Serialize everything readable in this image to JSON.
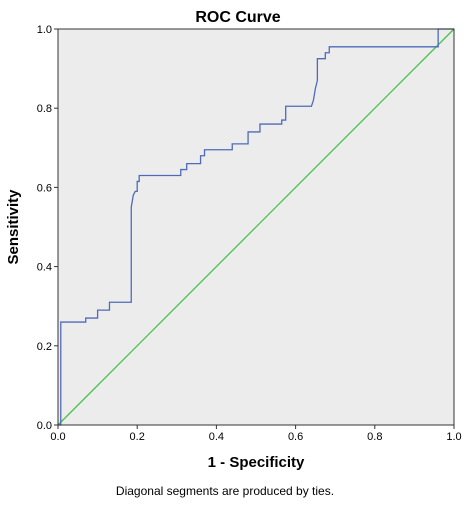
{
  "chart_data": {
    "type": "line",
    "title": "ROC Curve",
    "xlabel": "1 - Specificity",
    "ylabel": "Sensitivity",
    "xlim": [
      0,
      1
    ],
    "ylim": [
      0,
      1
    ],
    "xticks": [
      0.0,
      0.2,
      0.4,
      0.6,
      0.8,
      1.0
    ],
    "yticks": [
      0.0,
      0.2,
      0.4,
      0.6,
      0.8,
      1.0
    ],
    "tick_labels": [
      "0.0",
      "0.2",
      "0.4",
      "0.6",
      "0.8",
      "1.0"
    ],
    "grid": false,
    "footnote": "Diagonal segments are produced by ties.",
    "series": [
      {
        "color": "#4f6bb8",
        "x": [
          0,
          0.007,
          0.007,
          0.07,
          0.07,
          0.1,
          0.1,
          0.13,
          0.13,
          0.185,
          0.185,
          0.19,
          0.195,
          0.2,
          0.2,
          0.205,
          0.205,
          0.31,
          0.31,
          0.325,
          0.325,
          0.36,
          0.36,
          0.37,
          0.37,
          0.44,
          0.44,
          0.48,
          0.48,
          0.51,
          0.51,
          0.565,
          0.565,
          0.575,
          0.575,
          0.64,
          0.645,
          0.65,
          0.655,
          0.655,
          0.675,
          0.675,
          0.685,
          0.685,
          0.96,
          0.96,
          1.0
        ],
        "y": [
          0,
          0,
          0.26,
          0.26,
          0.27,
          0.27,
          0.29,
          0.29,
          0.31,
          0.31,
          0.55,
          0.58,
          0.59,
          0.59,
          0.615,
          0.615,
          0.63,
          0.63,
          0.645,
          0.645,
          0.66,
          0.66,
          0.68,
          0.68,
          0.695,
          0.695,
          0.71,
          0.71,
          0.74,
          0.74,
          0.76,
          0.76,
          0.77,
          0.77,
          0.805,
          0.805,
          0.82,
          0.85,
          0.87,
          0.925,
          0.925,
          0.94,
          0.94,
          0.955,
          0.955,
          1.0,
          1.0
        ]
      },
      {
        "color": "#48c048",
        "x": [
          0,
          1
        ],
        "y": [
          0,
          1
        ]
      }
    ]
  },
  "colors": {
    "plot_background": "#ececec",
    "frame": "#333333"
  }
}
